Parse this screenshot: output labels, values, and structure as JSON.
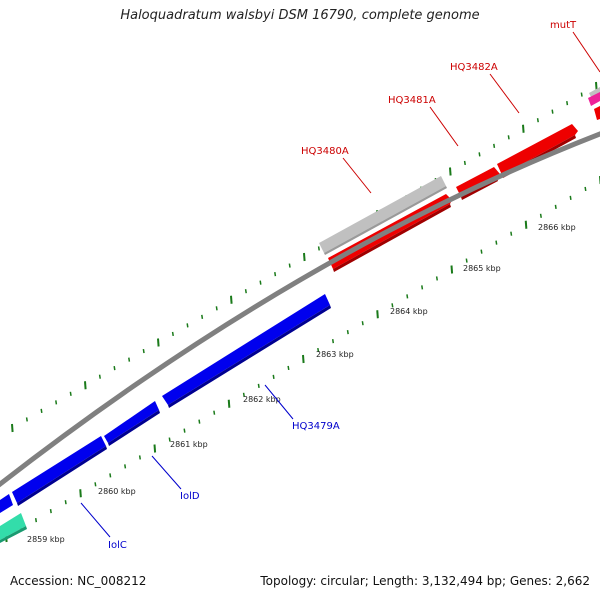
{
  "title": "Haloquadratum walsbyi DSM 16790, complete genome",
  "footer": {
    "accession": "Accession: NC_008212",
    "summary": "Topology: circular; Length: 3,132,494 bp; Genes: 2,662"
  },
  "colors": {
    "backbone": "#808080",
    "tick": "#1a7a1a",
    "forward_gene": "#ee0000",
    "reverse_gene": "#0000dd",
    "gray_feature": "#c0c0c0",
    "green_feature": "#33ddaa",
    "pink_feature": "#ee2299"
  },
  "scale_labels": [
    "2859 kbp",
    "2860 kbp",
    "2861 kbp",
    "2862 kbp",
    "2863 kbp",
    "2864 kbp",
    "2865 kbp",
    "2866 kbp"
  ],
  "gene_labels": [
    {
      "name": "IolC",
      "color": "#0000cc"
    },
    {
      "name": "IolD",
      "color": "#0000cc"
    },
    {
      "name": "HQ3479A",
      "color": "#0000cc"
    },
    {
      "name": "HQ3480A",
      "color": "#cc0000"
    },
    {
      "name": "HQ3481A",
      "color": "#cc0000"
    },
    {
      "name": "HQ3482A",
      "color": "#cc0000"
    },
    {
      "name": "mutT",
      "color": "#cc0000"
    }
  ]
}
